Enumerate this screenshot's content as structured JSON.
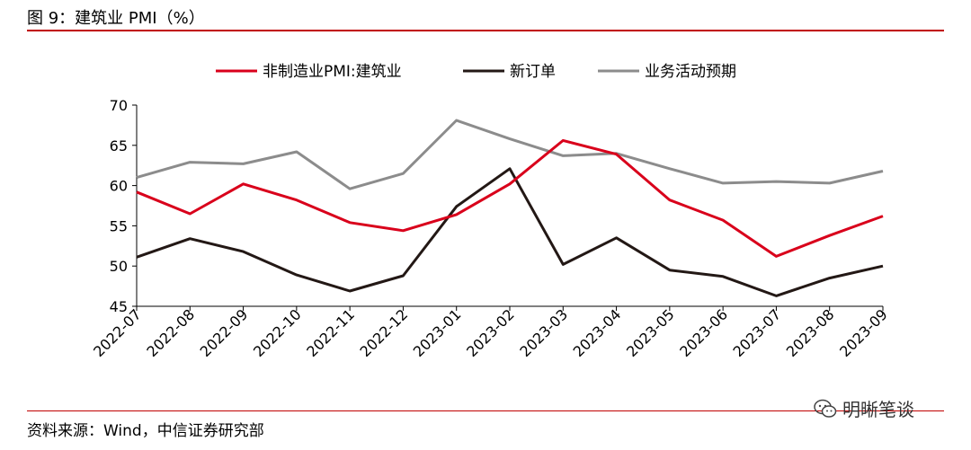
{
  "header": {
    "title": "图 9：建筑业 PMI（%）"
  },
  "footer": {
    "source": "资料来源：Wind，中信证券研究部"
  },
  "watermark": {
    "text": "明晰笔谈",
    "icon": "wechat-icon"
  },
  "chart_data": {
    "type": "line",
    "title": "",
    "xlabel": "",
    "ylabel": "",
    "ylim": [
      45,
      70
    ],
    "yticks": [
      45,
      50,
      55,
      60,
      65,
      70
    ],
    "grid": false,
    "legend_position": "top-center",
    "categories": [
      "2022-07",
      "2022-08",
      "2022-09",
      "2022-10",
      "2022-11",
      "2022-12",
      "2023-01",
      "2023-02",
      "2023-03",
      "2023-04",
      "2023-05",
      "2023-06",
      "2023-07",
      "2023-08",
      "2023-09"
    ],
    "series": [
      {
        "name": "非制造业PMI:建筑业",
        "color": "#d9001b",
        "values": [
          59.2,
          56.5,
          60.2,
          58.2,
          55.4,
          54.4,
          56.4,
          60.2,
          65.6,
          63.9,
          58.2,
          55.7,
          51.2,
          53.8,
          56.2
        ]
      },
      {
        "name": "新订单",
        "color": "#231815",
        "values": [
          51.1,
          53.4,
          51.8,
          48.9,
          46.9,
          48.8,
          57.4,
          62.1,
          50.2,
          53.5,
          49.5,
          48.7,
          46.3,
          48.5,
          50.0
        ]
      },
      {
        "name": "业务活动预期",
        "color": "#8c8c8c",
        "values": [
          61.0,
          62.9,
          62.7,
          64.2,
          59.6,
          61.5,
          68.1,
          65.8,
          63.7,
          64.0,
          62.1,
          60.3,
          60.5,
          60.3,
          61.8
        ]
      }
    ]
  }
}
